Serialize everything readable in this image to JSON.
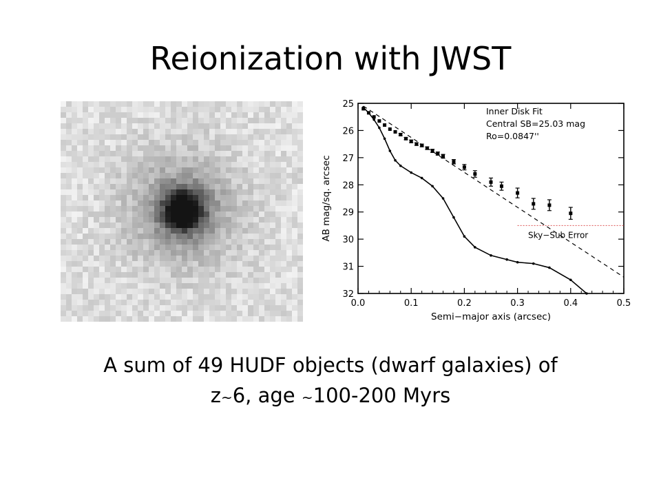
{
  "slide": {
    "title": "Reionization with JWST",
    "caption_line1": "A sum of 49 HUDF objects (dwarf galaxies) of",
    "caption_line2_a": "z",
    "caption_line2_tilde1": "~",
    "caption_line2_b": "6, age ",
    "caption_line2_tilde2": "~",
    "caption_line2_c": "100-200 Myrs"
  },
  "colors": {
    "sky_line": "#e06666",
    "ink": "#000000"
  },
  "chart_data": {
    "type": "scatter",
    "xlabel": "Semi−major axis (arcsec)",
    "ylabel": "AB mag/sq. arcsec",
    "xlim": [
      0.0,
      0.5
    ],
    "ylim": [
      32,
      25
    ],
    "y_inverted": true,
    "x_ticks": [
      "0.0",
      "0.1",
      "0.2",
      "0.3",
      "0.4",
      "0.5"
    ],
    "y_ticks": [
      "25",
      "26",
      "27",
      "28",
      "29",
      "30",
      "31",
      "32"
    ],
    "annotations": {
      "fit_title": "Inner Disk Fit",
      "fit_sb": "Central SB=25.03 mag",
      "fit_ro": "Ro=0.0847''",
      "sky_label": "Sky−Sub Error"
    },
    "sky_error_level": 29.5,
    "series": [
      {
        "style": "points-with-errors",
        "x": [
          0.01,
          0.02,
          0.03,
          0.04,
          0.05,
          0.06,
          0.07,
          0.08,
          0.09,
          0.1,
          0.11,
          0.12,
          0.13,
          0.14,
          0.15,
          0.16,
          0.18,
          0.2,
          0.22,
          0.25,
          0.27,
          0.3,
          0.33,
          0.36,
          0.4
        ],
        "y": [
          25.2,
          25.35,
          25.5,
          25.65,
          25.8,
          25.95,
          26.05,
          26.15,
          26.3,
          26.4,
          26.5,
          26.55,
          26.65,
          26.75,
          26.85,
          26.95,
          27.15,
          27.35,
          27.6,
          27.9,
          28.05,
          28.3,
          28.7,
          28.75,
          29.05
        ],
        "err": [
          0.02,
          0.02,
          0.02,
          0.03,
          0.03,
          0.03,
          0.03,
          0.04,
          0.04,
          0.05,
          0.05,
          0.05,
          0.05,
          0.06,
          0.06,
          0.07,
          0.08,
          0.1,
          0.12,
          0.15,
          0.15,
          0.18,
          0.2,
          0.2,
          0.22
        ]
      },
      {
        "style": "line-with-markers",
        "x": [
          0.01,
          0.02,
          0.03,
          0.04,
          0.05,
          0.06,
          0.07,
          0.08,
          0.1,
          0.12,
          0.14,
          0.16,
          0.18,
          0.2,
          0.22,
          0.25,
          0.28,
          0.3,
          0.33,
          0.36,
          0.4,
          0.43
        ],
        "y": [
          25.15,
          25.35,
          25.6,
          25.9,
          26.3,
          26.75,
          27.1,
          27.3,
          27.55,
          27.75,
          28.05,
          28.5,
          29.2,
          29.9,
          30.3,
          30.6,
          30.75,
          30.85,
          30.9,
          31.05,
          31.5,
          32.0
        ]
      },
      {
        "style": "dashed-fit",
        "x": [
          0.01,
          0.5
        ],
        "y": [
          25.1,
          31.4
        ]
      }
    ]
  }
}
